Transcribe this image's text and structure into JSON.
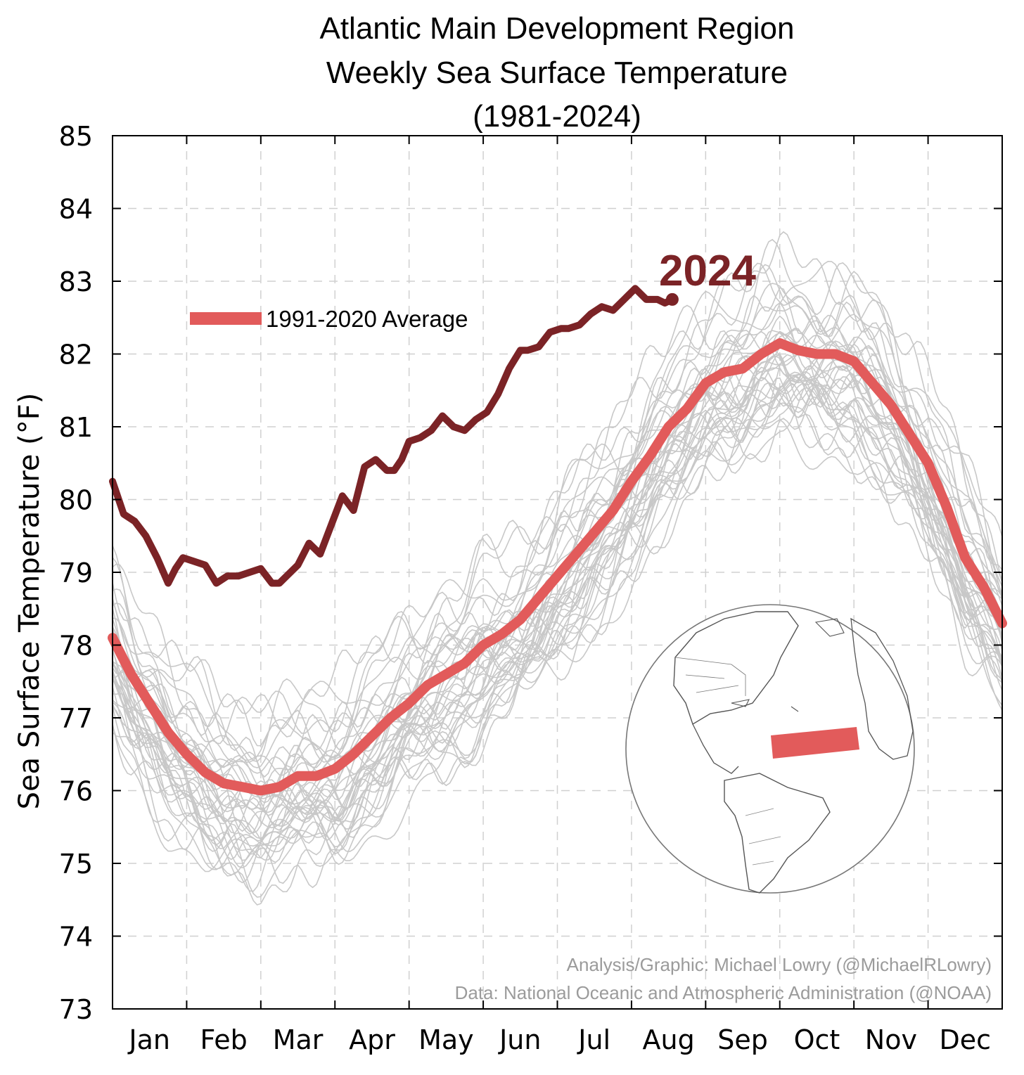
{
  "chart_data": {
    "type": "line",
    "title_lines": [
      "Atlantic Main Development Region",
      "Weekly Sea Surface Temperature",
      "(1981-2024)"
    ],
    "ylabel": "Sea Surface Temperature (°F)",
    "xlabel": "",
    "ylim": [
      73,
      85
    ],
    "yticks": [
      73,
      74,
      75,
      76,
      77,
      78,
      79,
      80,
      81,
      82,
      83,
      84,
      85
    ],
    "xlim": [
      0,
      12
    ],
    "month_ticks": [
      "Jan",
      "Feb",
      "Mar",
      "Apr",
      "May",
      "Jun",
      "Jul",
      "Aug",
      "Sep",
      "Oct",
      "Nov",
      "Dec"
    ],
    "grid": true,
    "legend_placement": "top-left",
    "colors": {
      "year_2024": "#7b2326",
      "average": "#e25b5b",
      "other_years": "#c8c8c8"
    },
    "series": [
      {
        "name": "1991-2020 Average",
        "x": [
          0,
          0.25,
          0.5,
          0.75,
          1.0,
          1.25,
          1.5,
          1.75,
          2.0,
          2.25,
          2.5,
          2.75,
          3.0,
          3.25,
          3.5,
          3.75,
          4.0,
          4.25,
          4.5,
          4.75,
          5.0,
          5.25,
          5.5,
          5.75,
          6.0,
          6.25,
          6.5,
          6.75,
          7.0,
          7.25,
          7.5,
          7.75,
          8.0,
          8.25,
          8.5,
          8.75,
          9.0,
          9.25,
          9.5,
          9.75,
          10.0,
          10.25,
          10.5,
          10.75,
          11.0,
          11.25,
          11.5,
          11.75,
          12.0
        ],
        "values": [
          78.1,
          77.6,
          77.2,
          76.8,
          76.5,
          76.25,
          76.1,
          76.05,
          76.0,
          76.05,
          76.2,
          76.2,
          76.3,
          76.5,
          76.75,
          77.0,
          77.2,
          77.45,
          77.6,
          77.75,
          78.0,
          78.15,
          78.35,
          78.65,
          78.95,
          79.25,
          79.55,
          79.85,
          80.25,
          80.6,
          81.0,
          81.25,
          81.6,
          81.75,
          81.8,
          82.0,
          82.15,
          82.05,
          82.0,
          82.0,
          81.9,
          81.6,
          81.3,
          80.9,
          80.5,
          79.9,
          79.2,
          78.8,
          78.3
        ]
      },
      {
        "name": "2024",
        "x": [
          0,
          0.15,
          0.3,
          0.45,
          0.6,
          0.75,
          0.85,
          0.95,
          1.1,
          1.25,
          1.4,
          1.55,
          1.7,
          1.85,
          2.0,
          2.15,
          2.25,
          2.35,
          2.5,
          2.65,
          2.8,
          2.95,
          3.1,
          3.25,
          3.4,
          3.55,
          3.7,
          3.8,
          3.9,
          4.0,
          4.15,
          4.3,
          4.45,
          4.6,
          4.75,
          4.9,
          5.05,
          5.2,
          5.35,
          5.5,
          5.6,
          5.75,
          5.9,
          6.05,
          6.15,
          6.3,
          6.45,
          6.6,
          6.75,
          6.9,
          7.05,
          7.2,
          7.35,
          7.45,
          7.55
        ],
        "values": [
          80.25,
          79.8,
          79.7,
          79.5,
          79.2,
          78.85,
          79.05,
          79.2,
          79.15,
          79.1,
          78.85,
          78.95,
          78.95,
          79.0,
          79.05,
          78.85,
          78.85,
          78.95,
          79.1,
          79.4,
          79.25,
          79.65,
          80.05,
          79.85,
          80.45,
          80.55,
          80.4,
          80.4,
          80.55,
          80.8,
          80.85,
          80.95,
          81.15,
          81.0,
          80.95,
          81.1,
          81.2,
          81.45,
          81.8,
          82.05,
          82.05,
          82.1,
          82.3,
          82.35,
          82.35,
          82.4,
          82.55,
          82.65,
          82.6,
          82.75,
          82.9,
          82.75,
          82.75,
          82.7,
          82.75
        ]
      }
    ],
    "background_years_note_label": "",
    "annotation_year": "2024",
    "legend_label": "1991-2020 Average",
    "credits": [
      "Analysis/Graphic: Michael Lowry (@MichaelRLowry)",
      "Data: National Oceanic and Atmospheric Administration (@NOAA)"
    ]
  }
}
